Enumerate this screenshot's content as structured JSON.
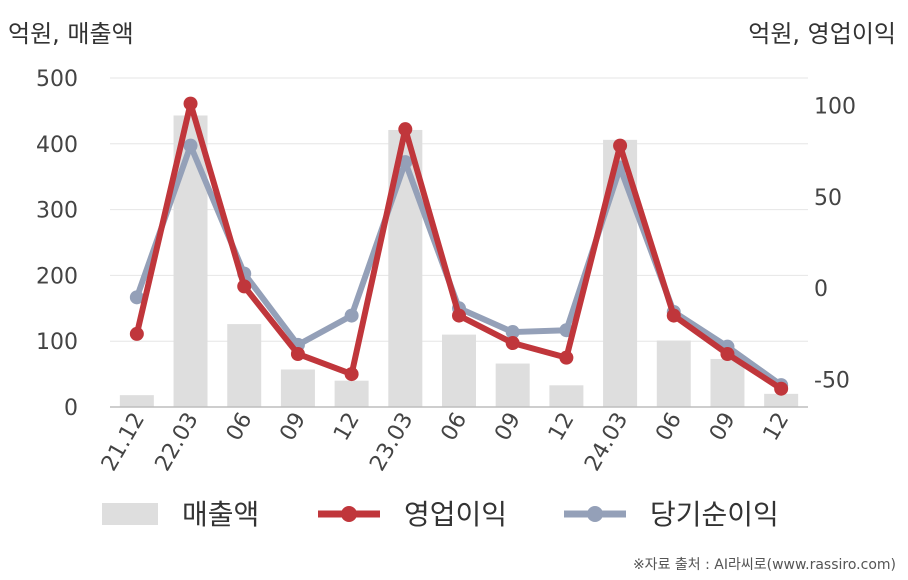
{
  "chart_data": {
    "type": "bar+line",
    "left_axis_label": "억원, 매출액",
    "right_axis_label": "억원, 영업이익",
    "categories": [
      "21.12",
      "22.03",
      "06",
      "09",
      "12",
      "23.03",
      "06",
      "09",
      "12",
      "24.03",
      "06",
      "09",
      "12"
    ],
    "left_ylim": [
      0,
      500
    ],
    "left_ticks": [
      0,
      100,
      200,
      300,
      400,
      500
    ],
    "right_ylim": [
      -65,
      115
    ],
    "right_ticks": [
      -50,
      0,
      50,
      100
    ],
    "grid": true,
    "series": [
      {
        "name": "매출액",
        "type": "bar",
        "axis": "left",
        "color": "#dedede",
        "values": [
          18,
          443,
          126,
          57,
          40,
          421,
          110,
          66,
          33,
          406,
          101,
          73,
          20
        ]
      },
      {
        "name": "영업이익",
        "type": "line",
        "axis": "right",
        "color": "#c0363b",
        "values": [
          -25,
          101,
          1,
          -36,
          -47,
          87,
          -15,
          -30,
          -38,
          78,
          -15,
          -36,
          -55
        ]
      },
      {
        "name": "당기순이익",
        "type": "line",
        "axis": "right",
        "color": "#94a0b8",
        "values": [
          -5,
          78,
          8,
          -31,
          -15,
          69,
          -11,
          -24,
          -23,
          66,
          -13,
          -32,
          -53
        ]
      }
    ],
    "legend_position": "bottom"
  },
  "source": "※자료 출처 : AI라씨로(www.rassiro.com)"
}
